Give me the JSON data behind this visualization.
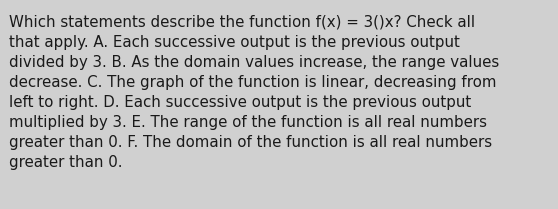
{
  "text": "Which statements describe the function f(x) = 3()x? Check all\nthat apply. A. Each successive output is the previous output\ndivided by 3. B. As the domain values increase, the range values\ndecrease. C. The graph of the function is linear, decreasing from\nleft to right. D. Each successive output is the previous output\nmultiplied by 3. E. The range of the function is all real numbers\ngreater than 0. F. The domain of the function is all real numbers\ngreater than 0.",
  "background_color": "#d0d0d0",
  "text_color": "#1a1a1a",
  "font_size": 10.8,
  "fig_width": 5.58,
  "fig_height": 2.09,
  "dpi": 100
}
